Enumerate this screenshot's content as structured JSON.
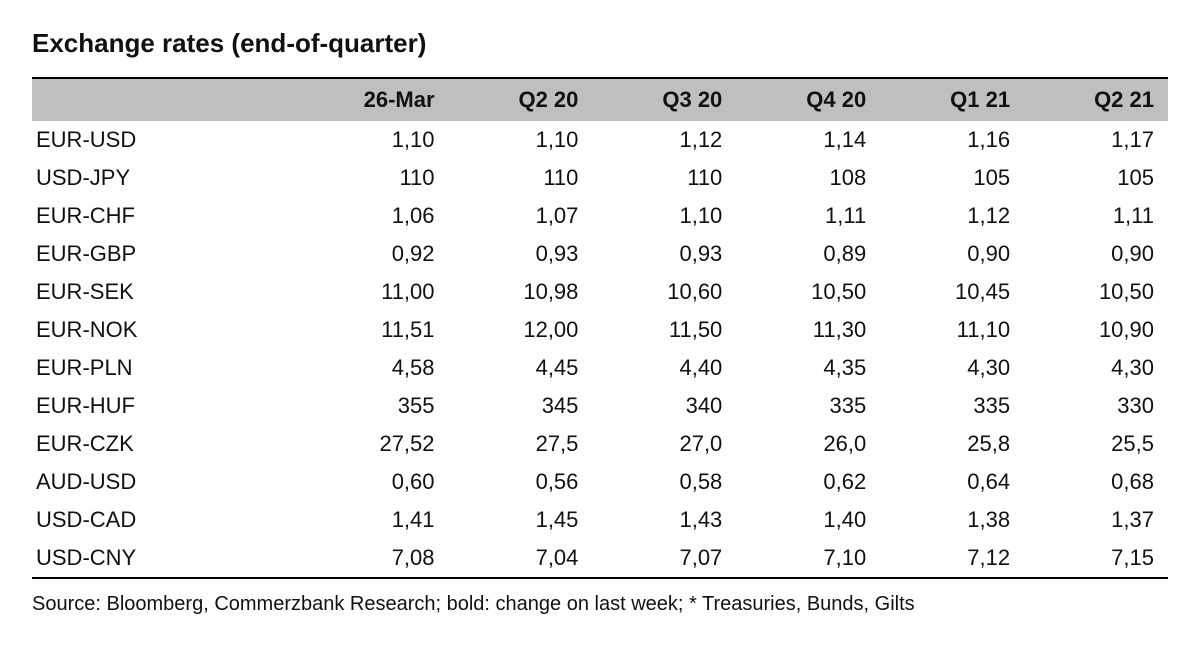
{
  "title": "Exchange rates (end-of-quarter)",
  "table": {
    "type": "table",
    "header_bg": "#bfbfbf",
    "border_color": "#000000",
    "font_family": "Arial",
    "header_fontsize": 22,
    "cell_fontsize": 22,
    "columns": [
      "",
      "26-Mar",
      "Q2 20",
      "Q3 20",
      "Q4 20",
      "Q1 21",
      "Q2 21"
    ],
    "col_widths_pct": [
      24,
      12.67,
      12.67,
      12.67,
      12.67,
      12.67,
      12.67
    ],
    "col_align": [
      "left",
      "right",
      "right",
      "right",
      "right",
      "right",
      "right"
    ],
    "rows": [
      [
        "EUR-USD",
        "1,10",
        "1,10",
        "1,12",
        "1,14",
        "1,16",
        "1,17"
      ],
      [
        "USD-JPY",
        "110",
        "110",
        "110",
        "108",
        "105",
        "105"
      ],
      [
        "EUR-CHF",
        "1,06",
        "1,07",
        "1,10",
        "1,11",
        "1,12",
        "1,11"
      ],
      [
        "EUR-GBP",
        "0,92",
        "0,93",
        "0,93",
        "0,89",
        "0,90",
        "0,90"
      ],
      [
        "EUR-SEK",
        "11,00",
        "10,98",
        "10,60",
        "10,50",
        "10,45",
        "10,50"
      ],
      [
        "EUR-NOK",
        "11,51",
        "12,00",
        "11,50",
        "11,30",
        "11,10",
        "10,90"
      ],
      [
        "EUR-PLN",
        "4,58",
        "4,45",
        "4,40",
        "4,35",
        "4,30",
        "4,30"
      ],
      [
        "EUR-HUF",
        "355",
        "345",
        "340",
        "335",
        "335",
        "330"
      ],
      [
        "EUR-CZK",
        "27,52",
        "27,5",
        "27,0",
        "26,0",
        "25,8",
        "25,5"
      ],
      [
        "AUD-USD",
        "0,60",
        "0,56",
        "0,58",
        "0,62",
        "0,64",
        "0,68"
      ],
      [
        "USD-CAD",
        "1,41",
        "1,45",
        "1,43",
        "1,40",
        "1,38",
        "1,37"
      ],
      [
        "USD-CNY",
        "7,08",
        "7,04",
        "7,07",
        "7,10",
        "7,12",
        "7,15"
      ]
    ]
  },
  "source": "Source: Bloomberg, Commerzbank Research; bold: change on last week; * Treasuries, Bunds, Gilts"
}
